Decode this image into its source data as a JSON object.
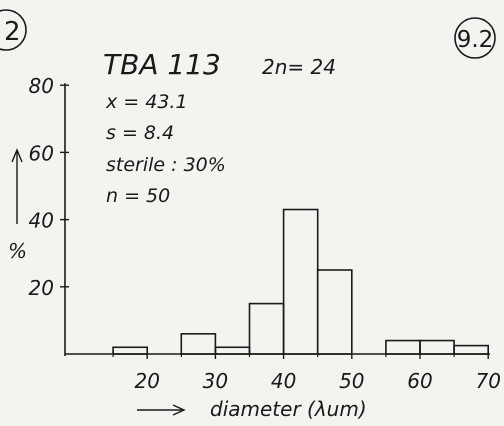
{
  "figure": {
    "corner_left": "2",
    "corner_right": "9.2"
  },
  "chart_data": {
    "type": "bar",
    "title": "TBA 113",
    "subtitle": "2n= 24",
    "stats": [
      "x = 43.1",
      "s = 8.4",
      "sterile : 30%",
      "n = 50"
    ],
    "xlabel": "diameter (µm)",
    "xlabel_text": "diameter (λum)",
    "ylabel": "%",
    "x_ticks": [
      "20",
      "30",
      "40",
      "50",
      "60",
      "70"
    ],
    "y_ticks": [
      "20",
      "40",
      "60",
      "80"
    ],
    "xlim": [
      10,
      70
    ],
    "ylim": [
      0,
      80
    ],
    "bars": [
      {
        "x0": 15,
        "x1": 20,
        "value": 2
      },
      {
        "x0": 25,
        "x1": 30,
        "value": 6
      },
      {
        "x0": 30,
        "x1": 35,
        "value": 2
      },
      {
        "x0": 35,
        "x1": 40,
        "value": 15
      },
      {
        "x0": 40,
        "x1": 45,
        "value": 43
      },
      {
        "x0": 45,
        "x1": 50,
        "value": 25
      },
      {
        "x0": 55,
        "x1": 60,
        "value": 4
      },
      {
        "x0": 60,
        "x1": 65,
        "value": 4
      },
      {
        "x0": 65,
        "x1": 70,
        "value": 2.5
      }
    ]
  }
}
